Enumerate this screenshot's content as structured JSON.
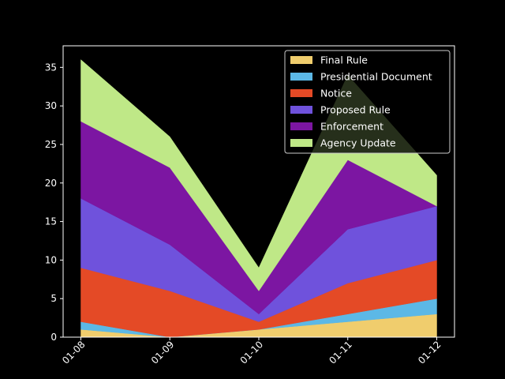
{
  "chart_data": {
    "type": "area",
    "stacked": true,
    "categories": [
      "01-08",
      "01-09",
      "01-10",
      "01-11",
      "01-12"
    ],
    "series": [
      {
        "name": "Final Rule",
        "values": [
          1,
          0,
          1,
          2,
          3
        ],
        "color": "#f0cd6d"
      },
      {
        "name": "Presidential Document",
        "values": [
          1,
          0,
          0,
          1,
          2
        ],
        "color": "#5cb8e6"
      },
      {
        "name": "Notice",
        "values": [
          7,
          6,
          1,
          4,
          5
        ],
        "color": "#e44a26"
      },
      {
        "name": "Proposed Rule",
        "values": [
          9,
          6,
          1,
          7,
          7
        ],
        "color": "#6f52dc"
      },
      {
        "name": "Enforcement",
        "values": [
          10,
          10,
          3,
          9,
          0
        ],
        "color": "#7c16a2"
      },
      {
        "name": "Agency Update",
        "values": [
          8,
          4,
          3,
          11,
          4
        ],
        "color": "#bfe887"
      }
    ],
    "ylim": [
      0,
      37.8
    ],
    "yticks": [
      0,
      5,
      10,
      15,
      20,
      25,
      30,
      35
    ],
    "xlabel": "",
    "ylabel": "",
    "title": "",
    "legend_position": "top-right",
    "background": "#000000",
    "text_color": "#ffffff"
  }
}
